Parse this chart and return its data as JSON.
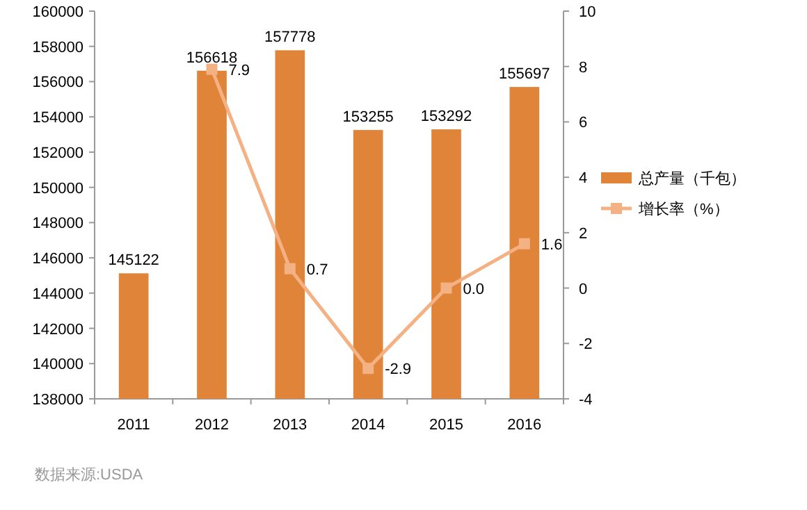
{
  "chart_data": {
    "type": "bar",
    "categories": [
      "2011",
      "2012",
      "2013",
      "2014",
      "2015",
      "2016"
    ],
    "series": [
      {
        "name": "总产量（千包）",
        "color": "#e0843a",
        "values": [
          145122,
          156618,
          157778,
          153255,
          153292,
          155697
        ],
        "value_labels": [
          "145122",
          "156618",
          "157778",
          "153255",
          "153292",
          "155697"
        ]
      },
      {
        "name": "增长率（%）",
        "type": "line",
        "axis": "y2",
        "color": "#f4b183",
        "marker": "square",
        "values": [
          null,
          7.9,
          0.7,
          -2.9,
          0.0,
          1.6
        ],
        "value_labels": [
          null,
          "7.9",
          "0.7",
          "-2.9",
          "0.0",
          "1.6"
        ]
      }
    ],
    "ylim": [
      138000,
      160000
    ],
    "yticks": [
      138000,
      140000,
      142000,
      144000,
      146000,
      148000,
      150000,
      152000,
      154000,
      156000,
      158000,
      160000
    ],
    "y2lim": [
      -4,
      10
    ],
    "y2ticks": [
      -4,
      -2,
      0,
      2,
      4,
      6,
      8,
      10
    ],
    "grid": false,
    "legend": "right",
    "annotations": [
      "数据来源:USDA"
    ]
  }
}
